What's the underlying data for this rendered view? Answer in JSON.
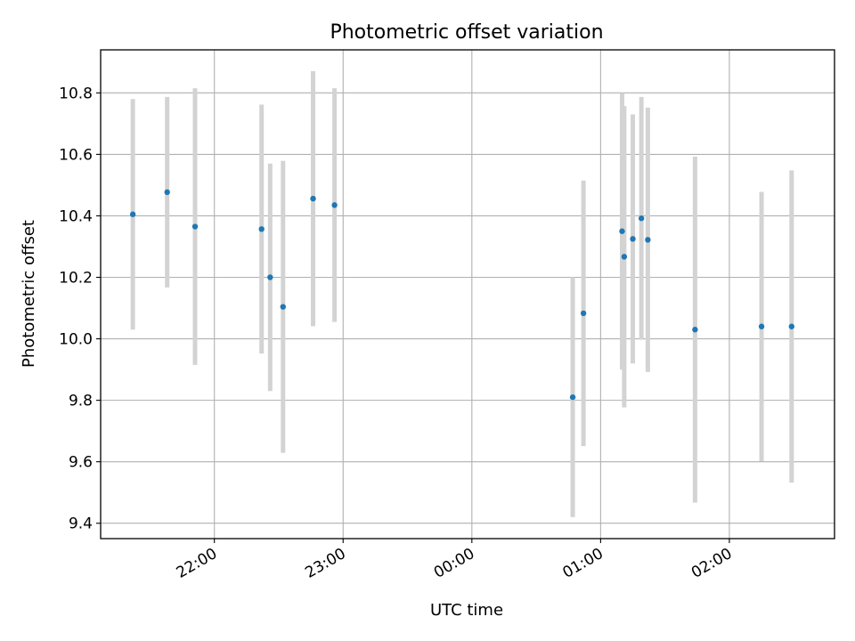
{
  "chart_data": {
    "type": "scatter",
    "title": "Photometric offset variation",
    "xlabel": "UTC time",
    "ylabel": "Photometric offset",
    "x_axis_kind": "time",
    "xlim": [
      "21:07",
      "02:49"
    ],
    "ylim": [
      9.35,
      10.94
    ],
    "x_ticks": [
      "22:00",
      "23:00",
      "00:00",
      "01:00",
      "02:00"
    ],
    "y_ticks": [
      "9.4",
      "9.6",
      "9.8",
      "10.0",
      "10.2",
      "10.4",
      "10.6",
      "10.8"
    ],
    "grid": true,
    "error_bars": true,
    "series": [
      {
        "marker_color": "#1f77b4",
        "errorbar_color": "#d3d3d3",
        "points": [
          {
            "x": "21:22",
            "y": 10.405,
            "err": 0.375
          },
          {
            "x": "21:38",
            "y": 10.477,
            "err": 0.31
          },
          {
            "x": "21:51",
            "y": 10.365,
            "err": 0.45
          },
          {
            "x": "22:22",
            "y": 10.357,
            "err": 0.405
          },
          {
            "x": "22:26",
            "y": 10.2,
            "err": 0.37
          },
          {
            "x": "22:32",
            "y": 10.104,
            "err": 0.475
          },
          {
            "x": "22:46",
            "y": 10.456,
            "err": 0.415
          },
          {
            "x": "22:56",
            "y": 10.435,
            "err": 0.38
          },
          {
            "x": "00:47",
            "y": 9.81,
            "err": 0.39
          },
          {
            "x": "00:52",
            "y": 10.083,
            "err": 0.432
          },
          {
            "x": "01:10",
            "y": 10.35,
            "err": 0.45
          },
          {
            "x": "01:11",
            "y": 10.267,
            "err": 0.49
          },
          {
            "x": "01:15",
            "y": 10.325,
            "err": 0.405
          },
          {
            "x": "01:19",
            "y": 10.392,
            "err": 0.395
          },
          {
            "x": "01:22",
            "y": 10.322,
            "err": 0.43
          },
          {
            "x": "01:44",
            "y": 10.03,
            "err": 0.563
          },
          {
            "x": "02:15",
            "y": 10.04,
            "err": 0.438
          },
          {
            "x": "02:29",
            "y": 10.04,
            "err": 0.508
          }
        ]
      }
    ]
  }
}
